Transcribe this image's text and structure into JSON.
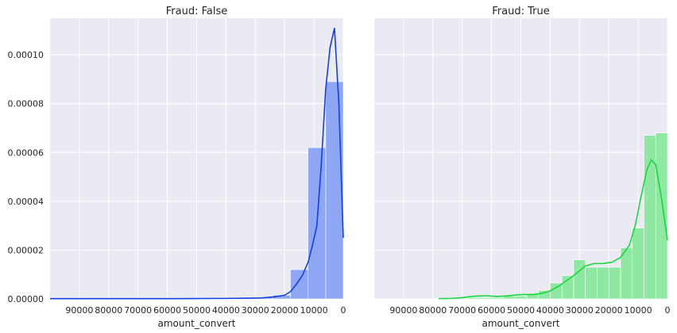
{
  "chart_data": [
    {
      "type": "bar",
      "title": "Fraud: False",
      "xlabel": "amount_convert",
      "ylabel": "",
      "x_inverted": true,
      "xlim": [
        0,
        100000
      ],
      "ylim": [
        0,
        0.000115
      ],
      "grid": true,
      "x_ticks": [
        90000,
        80000,
        70000,
        60000,
        50000,
        40000,
        30000,
        20000,
        10000,
        0
      ],
      "x_tick_labels": [
        "90000",
        "80000",
        "70000",
        "60000",
        "50000",
        "40000",
        "30000",
        "20000",
        "10000",
        "0"
      ],
      "y_ticks": [
        0,
        2e-05,
        4e-05,
        6e-05,
        8e-05,
        0.0001
      ],
      "y_tick_labels": [
        "0.00000",
        "0.00002",
        "0.00004",
        "0.00006",
        "0.00008",
        "0.00010"
      ],
      "bar_color": "#8da7f5",
      "line_color": "#1240e8",
      "bars": [
        {
          "x0": 0,
          "x1": 6000,
          "value": 8.9e-05
        },
        {
          "x0": 6000,
          "x1": 12000,
          "value": 6.2e-05
        },
        {
          "x0": 12000,
          "x1": 18000,
          "value": 1.2e-05
        },
        {
          "x0": 18000,
          "x1": 24000,
          "value": 1.5e-06
        },
        {
          "x0": 24000,
          "x1": 30000,
          "value": 6e-07
        },
        {
          "x0": 30000,
          "x1": 36000,
          "value": 3e-07
        },
        {
          "x0": 36000,
          "x1": 42000,
          "value": 2e-07
        },
        {
          "x0": 42000,
          "x1": 48000,
          "value": 1e-07
        },
        {
          "x0": 48000,
          "x1": 100000,
          "value": 1e-07
        }
      ],
      "kde": {
        "x": [
          0,
          1500,
          3000,
          4500,
          6000,
          7500,
          9000,
          10500,
          12000,
          14000,
          16000,
          18000,
          20000,
          24000,
          28000,
          32000,
          40000,
          50000,
          60000,
          70000,
          80000,
          90000,
          100000
        ],
        "y": [
          2.5e-05,
          8e-05,
          0.000111,
          0.000103,
          8.6e-05,
          5.5e-05,
          3e-05,
          2.2e-05,
          1.5e-05,
          9.5e-06,
          6e-06,
          3e-06,
          1.5e-06,
          8e-07,
          4e-07,
          3e-07,
          2e-07,
          1.5e-07,
          1e-07,
          1e-07,
          1e-07,
          1e-07,
          1e-07
        ]
      }
    },
    {
      "type": "bar",
      "title": "Fraud: True",
      "xlabel": "amount_convert",
      "ylabel": "",
      "x_inverted": true,
      "xlim": [
        0,
        100000
      ],
      "ylim": [
        0,
        0.000115
      ],
      "grid": true,
      "x_ticks": [
        90000,
        80000,
        70000,
        60000,
        50000,
        40000,
        30000,
        20000,
        10000,
        0
      ],
      "x_tick_labels": [
        "90000",
        "80000",
        "70000",
        "60000",
        "50000",
        "40000",
        "30000",
        "20000",
        "10000",
        "0"
      ],
      "bar_color": "#8ee8a2",
      "line_color": "#18d83c",
      "bars": [
        {
          "x0": 0,
          "x1": 4000,
          "value": 6.8e-05
        },
        {
          "x0": 4000,
          "x1": 8000,
          "value": 6.7e-05
        },
        {
          "x0": 8000,
          "x1": 12000,
          "value": 2.9e-05
        },
        {
          "x0": 12000,
          "x1": 16000,
          "value": 2.1e-05
        },
        {
          "x0": 16000,
          "x1": 20000,
          "value": 1.3e-05
        },
        {
          "x0": 20000,
          "x1": 24000,
          "value": 1.3e-05
        },
        {
          "x0": 24000,
          "x1": 28000,
          "value": 1.3e-05
        },
        {
          "x0": 28000,
          "x1": 32000,
          "value": 1.6e-05
        },
        {
          "x0": 32000,
          "x1": 36000,
          "value": 9.5e-06
        },
        {
          "x0": 36000,
          "x1": 40000,
          "value": 6.5e-06
        },
        {
          "x0": 40000,
          "x1": 44000,
          "value": 3.5e-06
        },
        {
          "x0": 44000,
          "x1": 48000,
          "value": 1.8e-06
        },
        {
          "x0": 48000,
          "x1": 52000,
          "value": 1.2e-06
        },
        {
          "x0": 52000,
          "x1": 56000,
          "value": 1.2e-06
        },
        {
          "x0": 56000,
          "x1": 60000,
          "value": 6e-07
        },
        {
          "x0": 60000,
          "x1": 64000,
          "value": 6e-07
        },
        {
          "x0": 64000,
          "x1": 68000,
          "value": 6e-07
        },
        {
          "x0": 68000,
          "x1": 72000,
          "value": 3e-07
        },
        {
          "x0": 72000,
          "x1": 76000,
          "value": 3e-07
        },
        {
          "x0": 76000,
          "x1": 80000,
          "value": 2e-07
        }
      ],
      "kde": {
        "x": [
          0,
          2000,
          4000,
          5500,
          7000,
          9000,
          11000,
          13000,
          16000,
          19000,
          22000,
          25000,
          28000,
          31000,
          34000,
          37000,
          40000,
          43000,
          46000,
          49000,
          52000,
          55000,
          58000,
          62000,
          66000,
          70000,
          74000,
          78000
        ],
        "y": [
          2.4e-05,
          4.1e-05,
          5.5e-05,
          5.7e-05,
          5.3e-05,
          4.2e-05,
          3e-05,
          2.2e-05,
          1.7e-05,
          1.5e-05,
          1.45e-05,
          1.45e-05,
          1.35e-05,
          1.05e-05,
          7.8e-06,
          5.3e-06,
          3.3e-06,
          2.2e-06,
          1.8e-06,
          1.8e-06,
          1.6e-06,
          1.2e-06,
          1e-06,
          1.3e-06,
          1.1e-06,
          5e-07,
          2e-07,
          1e-07
        ]
      }
    }
  ]
}
